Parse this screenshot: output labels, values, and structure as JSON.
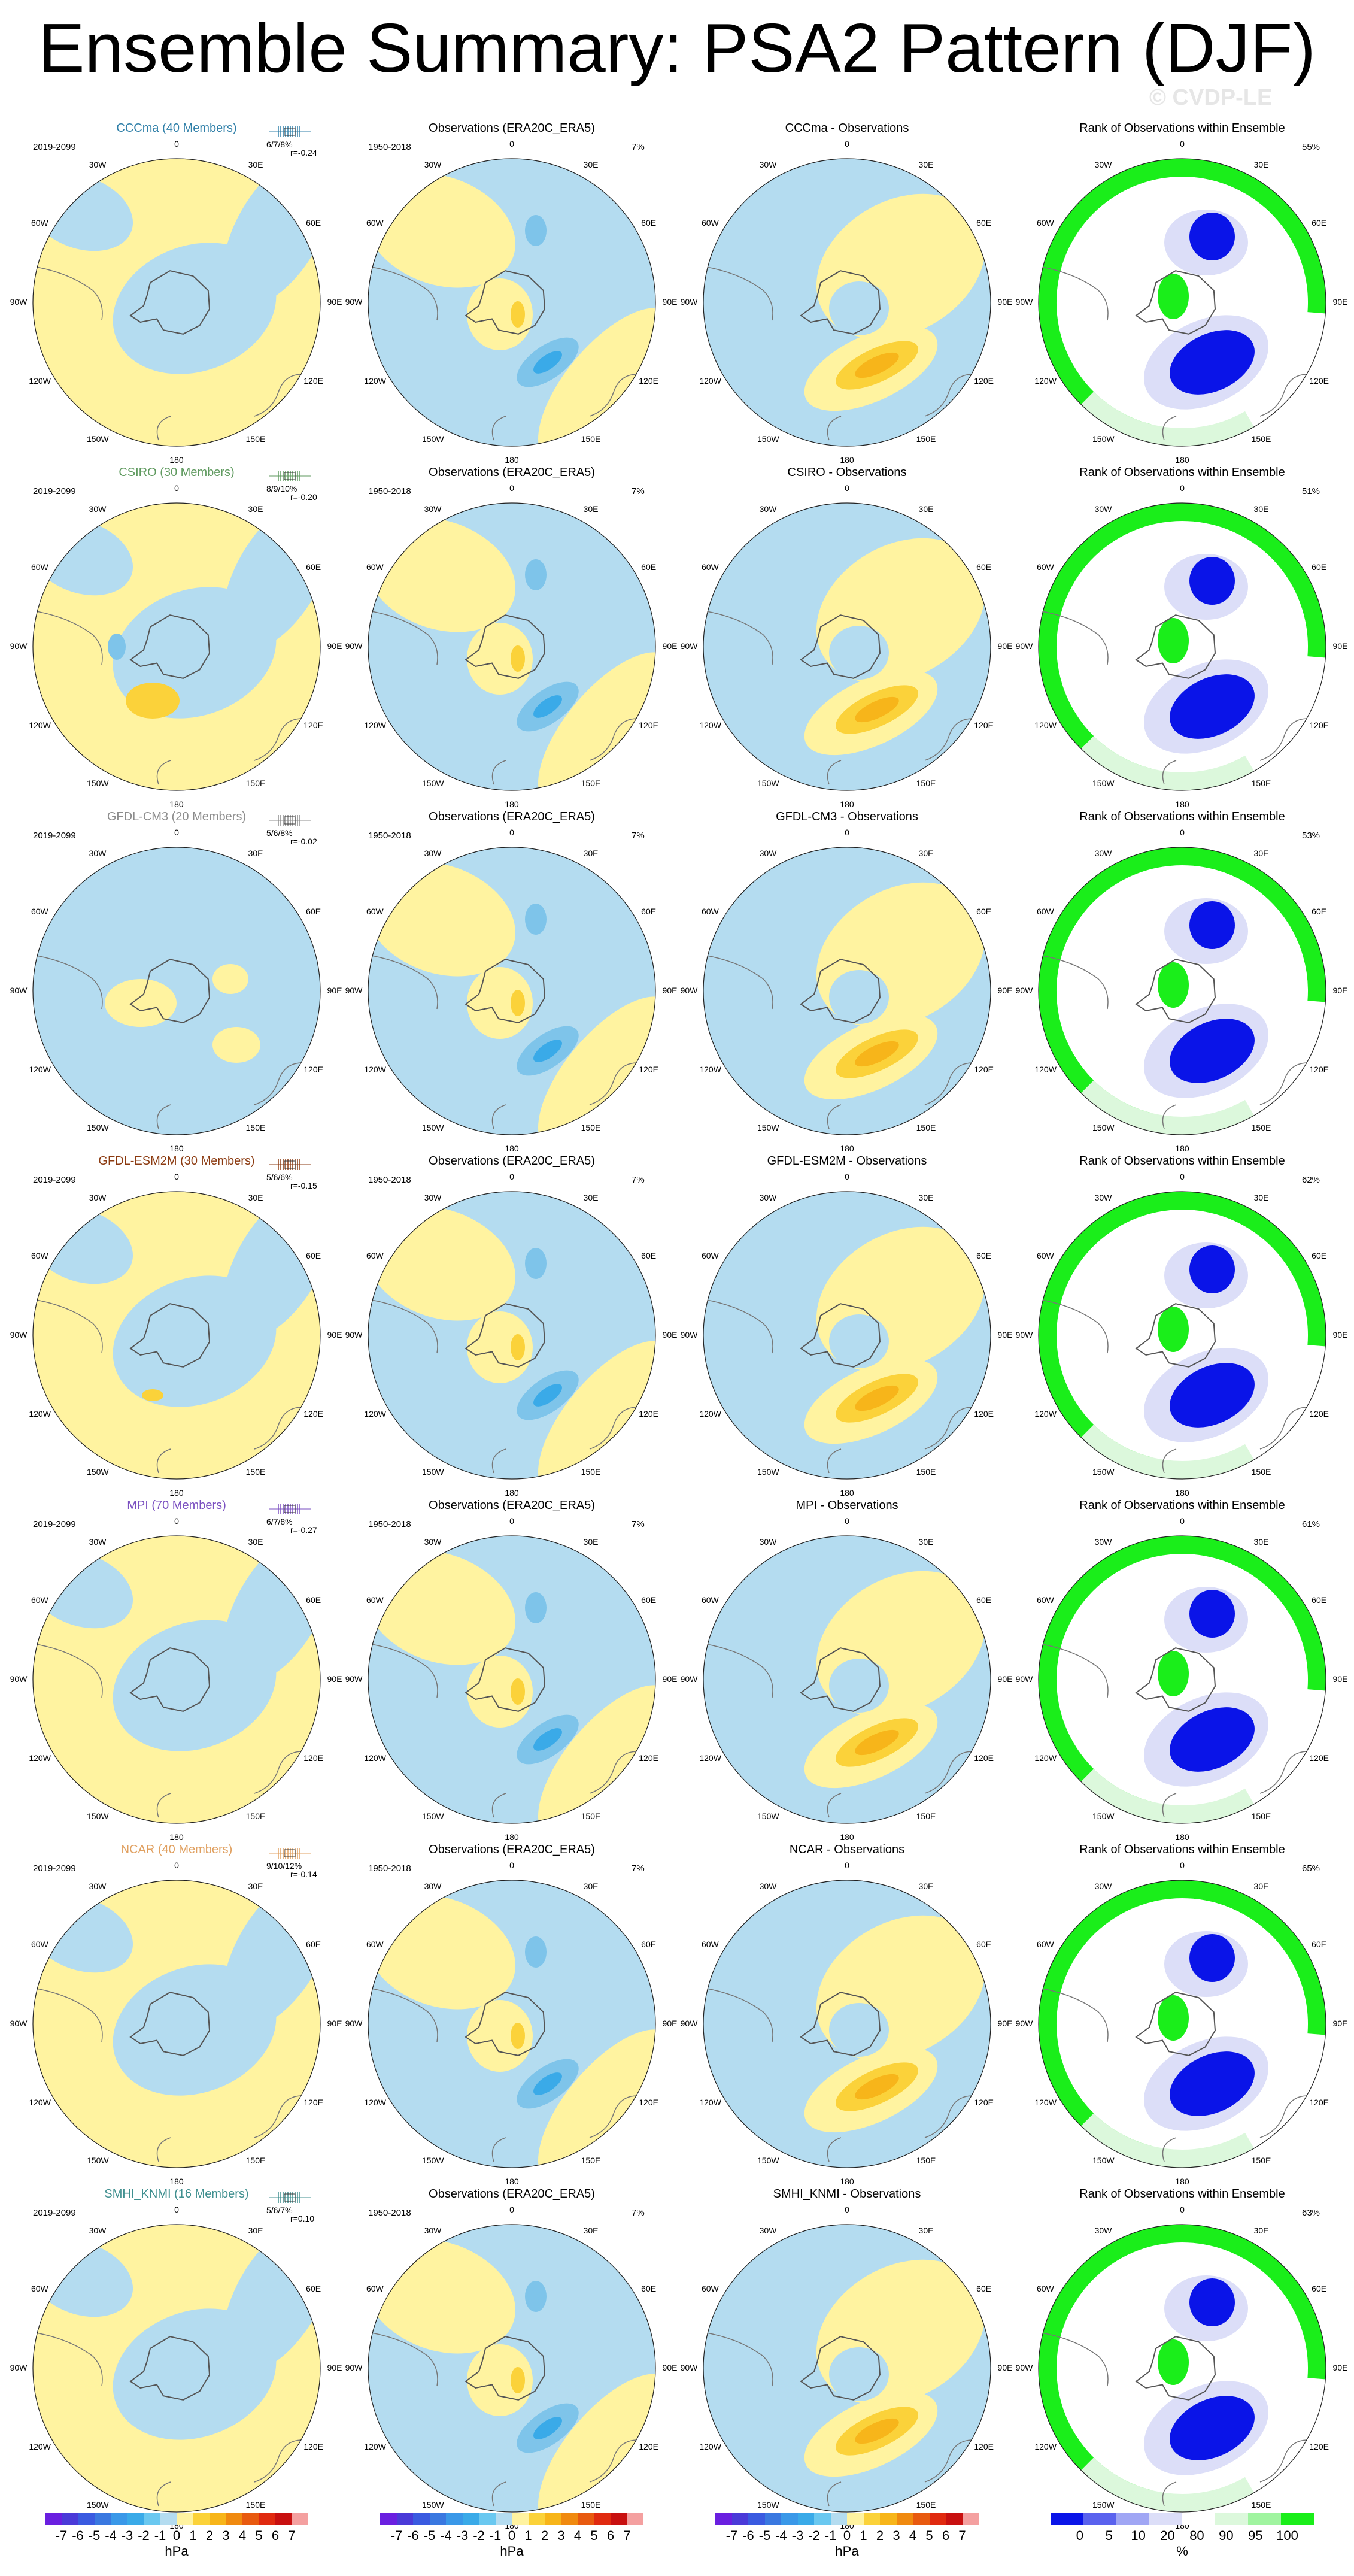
{
  "title": "Ensemble Summary: PSA2 Pattern (DJF)",
  "watermark": "© CVDP-LE",
  "longitude_labels": [
    "0",
    "30E",
    "60E",
    "90E",
    "120E",
    "150E",
    "180",
    "150W",
    "120W",
    "90W",
    "60W",
    "30W"
  ],
  "rank_title": "Rank of Observations within Ensemble",
  "obs_title": "Observations (ERA20C_ERA5)",
  "obs_period": "1950-2018",
  "obs_pct": "7%",
  "model_period": "2019-2099",
  "rows": [
    {
      "model": "CCCma (40 Members)",
      "diff": "CCCma - Observations",
      "color": "#2f7fa8",
      "stats": "6/7/8%",
      "r": "r=-0.24",
      "rank_pct": "55%"
    },
    {
      "model": "CSIRO (30 Members)",
      "diff": "CSIRO - Observations",
      "color": "#5f9a5f",
      "stats": "8/9/10%",
      "r": "r=-0.20",
      "rank_pct": "51%"
    },
    {
      "model": "GFDL-CM3 (20 Members)",
      "diff": "GFDL-CM3 - Observations",
      "color": "#8c8c8c",
      "stats": "5/6/8%",
      "r": "r=-0.02",
      "rank_pct": "53%"
    },
    {
      "model": "GFDL-ESM2M (30 Members)",
      "diff": "GFDL-ESM2M - Observations",
      "color": "#8b3a10",
      "stats": "5/6/6%",
      "r": "r=-0.15",
      "rank_pct": "62%"
    },
    {
      "model": "MPI (70 Members)",
      "diff": "MPI - Observations",
      "color": "#7a4fc0",
      "stats": "6/7/8%",
      "r": "r=-0.27",
      "rank_pct": "61%"
    },
    {
      "model": "NCAR (40 Members)",
      "diff": "NCAR - Observations",
      "color": "#e0a060",
      "stats": "9/10/12%",
      "r": "r=-0.14",
      "rank_pct": "65%"
    },
    {
      "model": "SMHI_KNMI (16 Members)",
      "diff": "SMHI_KNMI - Observations",
      "color": "#3f8f8f",
      "stats": "5/6/7%",
      "r": "r=0.10",
      "rank_pct": "63%"
    }
  ],
  "colorbar": {
    "ticks": [
      "-7",
      "-6",
      "-5",
      "-4",
      "-3",
      "-2",
      "-1",
      "0",
      "1",
      "2",
      "3",
      "4",
      "5",
      "6",
      "7"
    ],
    "unit": "hPa",
    "colors": [
      "#6a1fe0",
      "#4a3ad8",
      "#3a5ae0",
      "#3a78e0",
      "#3a98e8",
      "#3aaae8",
      "#6ac8f0",
      "#b4dcf0",
      "#fff3a0",
      "#fbd23a",
      "#f7b51a",
      "#f08a10",
      "#e85a10",
      "#e02a10",
      "#c81010",
      "#f4a0a0"
    ],
    "rank_ticks": [
      "0",
      "5",
      "10",
      "20",
      "80",
      "90",
      "95",
      "100"
    ],
    "rank_unit": "%",
    "rank_colors": [
      "#0a14e8",
      "#5a62ee",
      "#a0a6f4",
      "#dcdef8",
      "#ffffff",
      "#dcf8dc",
      "#a0f4a0",
      "#1aee1a"
    ]
  }
}
